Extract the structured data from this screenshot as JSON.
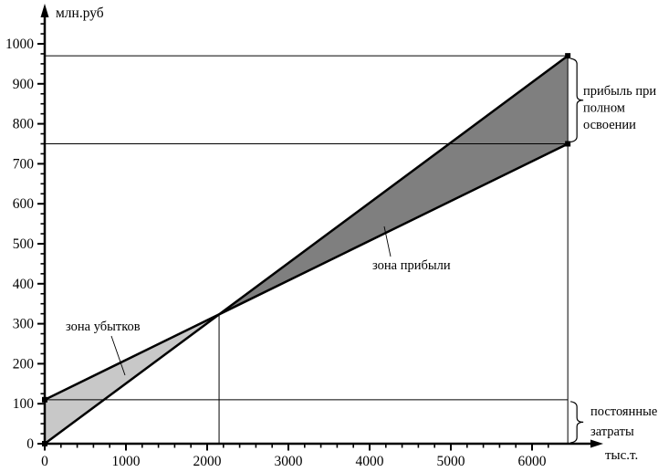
{
  "figure": {
    "background": "#ffffff",
    "line_color": "#000000"
  },
  "chart_data": {
    "type": "line",
    "title": "",
    "description": "Break-even (CVP) chart: revenue and total-cost lines with loss and profit zones",
    "y_axis": {
      "label": "млн.руб",
      "min": 0,
      "max": 1000,
      "major_tick_step": 100,
      "minor_tick_step": 25,
      "tick_labels": [
        "0",
        "100",
        "200",
        "300",
        "400",
        "500",
        "600",
        "700",
        "800",
        "900",
        "1000"
      ]
    },
    "x_axis": {
      "label": "тыс.т.",
      "min": 0,
      "max": 6000,
      "major_tick_step": 1000,
      "minor_tick_step": 200,
      "tick_labels": [
        "0",
        "1000",
        "2000",
        "3000",
        "4000",
        "5000",
        "6000"
      ]
    },
    "series": [
      {
        "name": "revenue-line",
        "points": [
          [
            0,
            0
          ],
          [
            6440,
            970
          ]
        ],
        "color": "#000000"
      },
      {
        "name": "total-cost-line",
        "points": [
          [
            0,
            110
          ],
          [
            6440,
            750
          ]
        ],
        "color": "#000000"
      }
    ],
    "break_even_point": {
      "x": 2150,
      "y": 320
    },
    "full_capacity_x": 6440,
    "fixed_costs": 110,
    "revenue_at_full_capacity": 970,
    "cost_at_full_capacity": 750,
    "profit_at_full_capacity": {
      "from": 750,
      "to": 970
    },
    "reference_lines": {
      "horizontal": [
        970,
        750,
        110
      ]
    },
    "zones": [
      {
        "id": "loss",
        "fill": "#c8c8c8"
      },
      {
        "id": "profit",
        "fill": "#7f7f7f"
      }
    ],
    "labels": {
      "loss_zone": "зона убытков",
      "profit_zone": "зона прибыли",
      "profit_at_full": [
        "прибыль при",
        "полном",
        "освоении"
      ],
      "fixed_costs": [
        "постоянные",
        "затраты"
      ]
    },
    "grid": "off",
    "legend": "none"
  }
}
